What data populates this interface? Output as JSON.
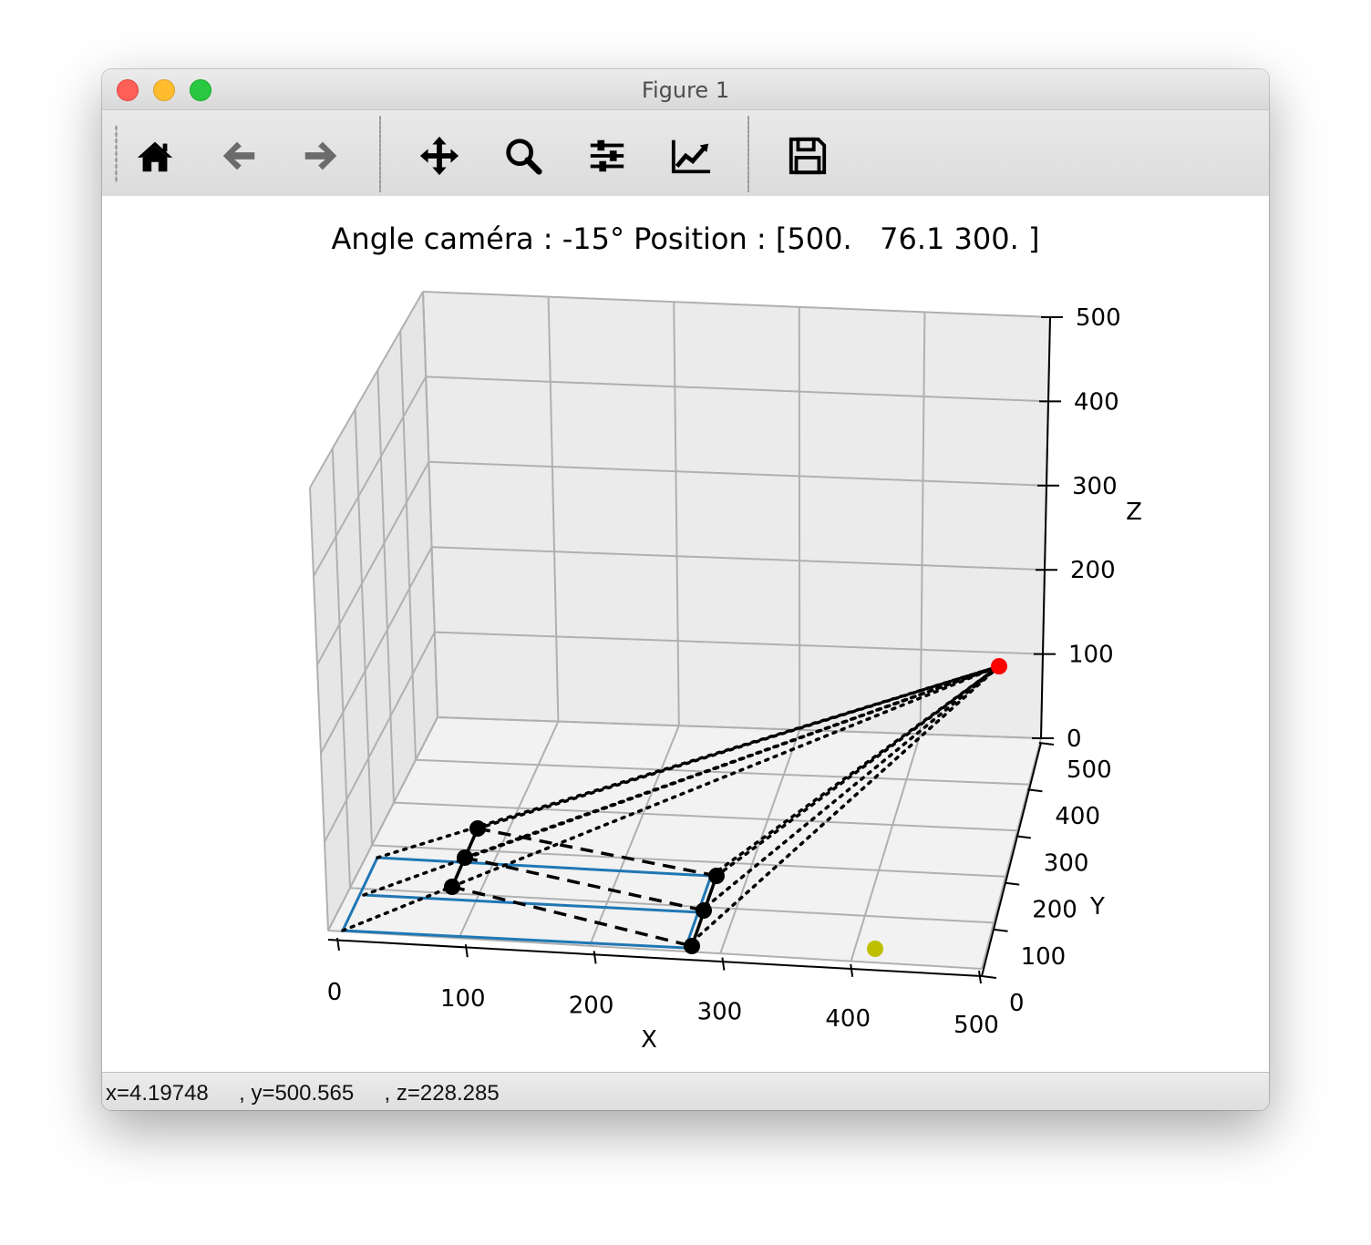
{
  "window": {
    "title": "Figure 1"
  },
  "toolbar": {
    "buttons": [
      {
        "name": "home-icon",
        "tooltip": "Reset original view"
      },
      {
        "name": "back-icon",
        "tooltip": "Back to previous view"
      },
      {
        "name": "forward-icon",
        "tooltip": "Forward to next view"
      },
      {
        "name": "pan-icon",
        "tooltip": "Pan axes"
      },
      {
        "name": "zoom-icon",
        "tooltip": "Zoom to rectangle"
      },
      {
        "name": "subplots-icon",
        "tooltip": "Configure subplots"
      },
      {
        "name": "axes-edit-icon",
        "tooltip": "Edit axis, curve and image parameters"
      },
      {
        "name": "save-icon",
        "tooltip": "Save the figure"
      }
    ]
  },
  "plot": {
    "title": "Angle caméra : -15° Position : [500.   76.1 300. ]",
    "xlabel": "X",
    "ylabel": "Y",
    "zlabel": "Z"
  },
  "chart_data": {
    "type": "scatter",
    "projection": "3d",
    "title": "Angle caméra : -15° Position : [500.   76.1 300. ]",
    "xlabel": "X",
    "ylabel": "Y",
    "zlabel": "Z",
    "xlim": [
      0,
      500
    ],
    "ylim": [
      0,
      500
    ],
    "zlim": [
      0,
      500
    ],
    "x_ticks": [
      "0",
      "100",
      "200",
      "300",
      "400",
      "500"
    ],
    "y_ticks": [
      "0",
      "100",
      "200",
      "300",
      "400",
      "500"
    ],
    "z_ticks": [
      "0",
      "100",
      "200",
      "300",
      "400",
      "500"
    ],
    "grid": true,
    "camera_point": {
      "color": "#ff0000",
      "x": 500,
      "y": 76.1,
      "z": 300
    },
    "target_point": {
      "color": "#bfbf00",
      "x": 420,
      "y": 120,
      "z": 0
    },
    "image_corners": [
      {
        "x": 110,
        "y": 310,
        "z": 0
      },
      {
        "x": 100,
        "y": 250,
        "z": 0
      },
      {
        "x": 95,
        "y": 180,
        "z": 0
      },
      {
        "x": 300,
        "y": 310,
        "z": 0
      },
      {
        "x": 295,
        "y": 230,
        "z": 0
      },
      {
        "x": 290,
        "y": 140,
        "z": 0
      }
    ],
    "colors": {
      "frame": "#1f77b4",
      "markers": "#000000",
      "pane": "#f2f2f2",
      "grid": "#b0b0b0"
    }
  },
  "status": {
    "coords": "x=4.19748     , y=500.565     , z=228.285"
  }
}
